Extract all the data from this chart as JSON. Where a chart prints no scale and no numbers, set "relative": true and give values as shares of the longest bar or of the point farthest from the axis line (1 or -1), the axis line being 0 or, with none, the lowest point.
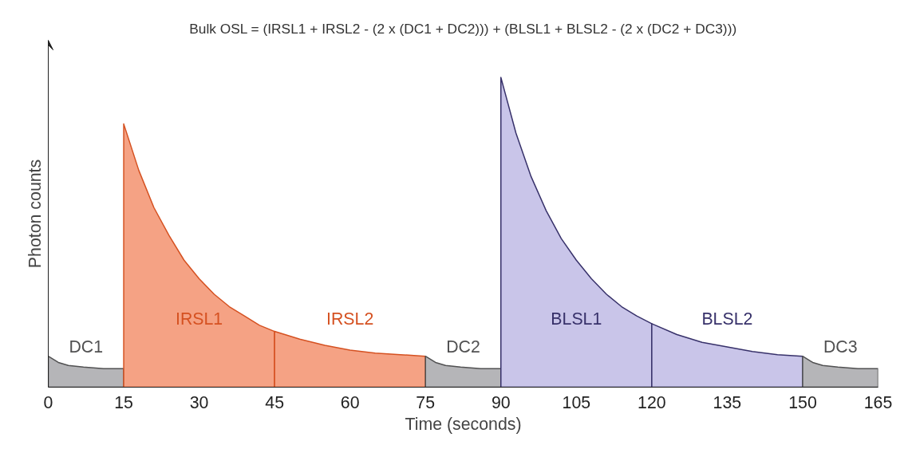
{
  "chart_data": {
    "type": "area",
    "relative": true,
    "title": "Bulk OSL = (IRSL1 + IRSL2 - (2 x (DC1 + DC2))) + (BLSL1 + BLSL2 - (2 x (DC2 + DC3)))",
    "xlabel": "Time (seconds)",
    "ylabel": "Photon counts",
    "xlim": [
      0,
      165
    ],
    "xticks": [
      0,
      15,
      30,
      45,
      60,
      75,
      90,
      105,
      120,
      135,
      150,
      165
    ],
    "tick_labels": "x",
    "grid": false,
    "series": [
      {
        "name": "DC1",
        "color": "#b5b5b8",
        "x": [
          0,
          2,
          4,
          7,
          11,
          15
        ],
        "values": [
          0.1,
          0.08,
          0.07,
          0.065,
          0.06,
          0.06
        ]
      },
      {
        "name": "IRSL1",
        "color": "#f5a284",
        "x": [
          15,
          18,
          21,
          24,
          27,
          30,
          33,
          36,
          39,
          42,
          45
        ],
        "values": [
          0.85,
          0.7,
          0.58,
          0.49,
          0.41,
          0.35,
          0.3,
          0.26,
          0.23,
          0.2,
          0.18
        ]
      },
      {
        "name": "IRSL2",
        "color": "#f5a284",
        "x": [
          45,
          50,
          55,
          60,
          65,
          70,
          75
        ],
        "values": [
          0.18,
          0.155,
          0.135,
          0.12,
          0.11,
          0.105,
          0.1
        ]
      },
      {
        "name": "DC2",
        "color": "#b5b5b8",
        "x": [
          75,
          77,
          79,
          82,
          86,
          90
        ],
        "values": [
          0.1,
          0.08,
          0.07,
          0.065,
          0.06,
          0.06
        ]
      },
      {
        "name": "BLSL1",
        "color": "#c9c5e9",
        "x": [
          90,
          93,
          96,
          99,
          102,
          105,
          108,
          111,
          114,
          117,
          120
        ],
        "values": [
          1.0,
          0.82,
          0.68,
          0.57,
          0.48,
          0.41,
          0.35,
          0.3,
          0.26,
          0.23,
          0.205
        ]
      },
      {
        "name": "BLSL2",
        "color": "#c9c5e9",
        "x": [
          120,
          125,
          130,
          135,
          140,
          145,
          150
        ],
        "values": [
          0.205,
          0.17,
          0.145,
          0.13,
          0.115,
          0.105,
          0.1
        ]
      },
      {
        "name": "DC3",
        "color": "#b5b5b8",
        "x": [
          150,
          152,
          154,
          157,
          161,
          165
        ],
        "values": [
          0.1,
          0.08,
          0.07,
          0.065,
          0.06,
          0.06
        ]
      }
    ]
  }
}
